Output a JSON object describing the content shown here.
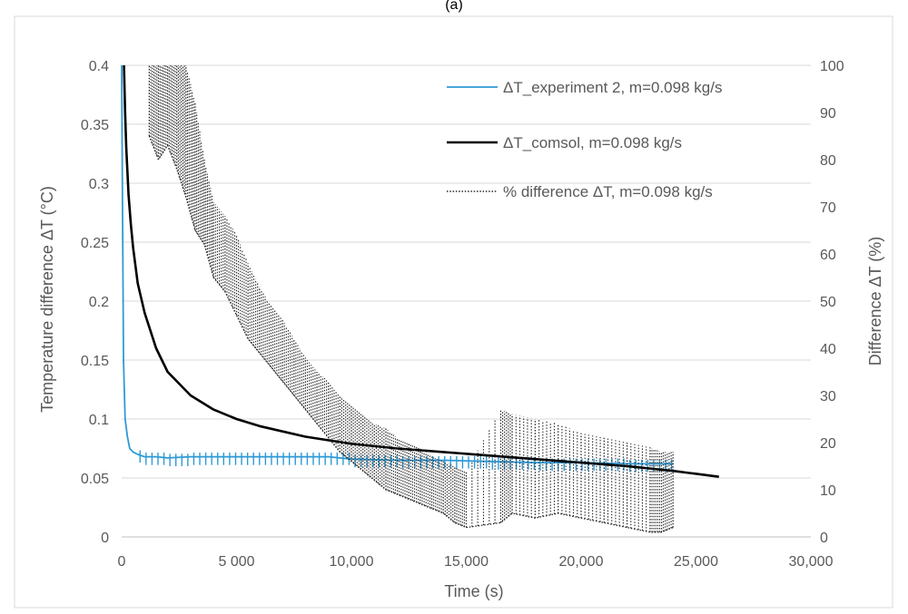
{
  "header": {
    "caption": "(a)"
  },
  "chart_data": {
    "type": "line",
    "xlabel": "Time (s)",
    "ylabel_left": "Temperature difference ΔT (°C)",
    "ylabel_right": "Difference ΔT (%)",
    "xlim": [
      0,
      30000
    ],
    "ylim_left": [
      0,
      0.4
    ],
    "ylim_right": [
      0,
      100
    ],
    "x_ticks": [
      0,
      5000,
      10000,
      15000,
      20000,
      25000,
      30000
    ],
    "x_tick_labels": [
      "0",
      "5 000",
      "10,000",
      "15,000",
      "20,000",
      "25,000",
      "30,000"
    ],
    "y_left_ticks": [
      0,
      0.05,
      0.1,
      0.15,
      0.2,
      0.25,
      0.3,
      0.35,
      0.4
    ],
    "y_left_tick_labels": [
      "0",
      "0.05",
      "0.1",
      "0.15",
      "0.2",
      "0.25",
      "0.3",
      "0.35",
      "0.4"
    ],
    "y_right_ticks": [
      0,
      10,
      20,
      30,
      40,
      50,
      60,
      70,
      80,
      90,
      100
    ],
    "y_right_tick_labels": [
      "0",
      "10",
      "20",
      "30",
      "40",
      "50",
      "60",
      "70",
      "80",
      "90",
      "100"
    ],
    "grid": "horizontal",
    "legend_position": "top-right",
    "colors": {
      "experiment": "#2E9AD6",
      "comsol": "#000000",
      "difference": "#262626",
      "grid": "#D9D9D9",
      "axis": "#BFBFBF"
    },
    "series": [
      {
        "name": "ΔT_experiment 2, m=0.098 kg/s",
        "axis": "left",
        "style": "solid",
        "color": "#2E9AD6",
        "x": [
          0,
          30,
          80,
          150,
          250,
          350,
          500,
          700,
          1000,
          1500,
          2000,
          3000,
          5000,
          7000,
          9000,
          10000,
          12000,
          14000,
          16000,
          18000,
          20000,
          22000,
          23000,
          24000
        ],
        "y": [
          0.4,
          0.3,
          0.15,
          0.1,
          0.085,
          0.075,
          0.072,
          0.07,
          0.068,
          0.068,
          0.067,
          0.068,
          0.068,
          0.068,
          0.068,
          0.066,
          0.065,
          0.065,
          0.064,
          0.063,
          0.063,
          0.062,
          0.062,
          0.062
        ]
      },
      {
        "name": "ΔT_comsol, m=0.098 kg/s",
        "axis": "left",
        "style": "solid",
        "color": "#000000",
        "x": [
          100,
          150,
          200,
          300,
          400,
          500,
          700,
          1000,
          1500,
          2000,
          3000,
          4000,
          5000,
          6000,
          8000,
          10000,
          12000,
          14000,
          16000,
          18000,
          20000,
          22000,
          24000,
          26000
        ],
        "y": [
          0.4,
          0.36,
          0.33,
          0.29,
          0.265,
          0.245,
          0.215,
          0.19,
          0.16,
          0.14,
          0.12,
          0.108,
          0.1,
          0.094,
          0.085,
          0.079,
          0.075,
          0.072,
          0.069,
          0.066,
          0.063,
          0.06,
          0.056,
          0.051
        ]
      },
      {
        "name": "% difference ΔT, m=0.098 kg/s",
        "axis": "right",
        "style": "dotted",
        "color": "#262626",
        "x": [
          1200,
          1600,
          2000,
          2400,
          2800,
          3200,
          3600,
          4000,
          4500,
          5000,
          5500,
          6000,
          6500,
          7000,
          7500,
          8000,
          8500,
          9000,
          9500,
          10000,
          10500,
          11000,
          11500,
          12000,
          12500,
          13000,
          13500,
          14000,
          14500,
          15000,
          16500,
          17000,
          18000,
          19000,
          20000,
          21000,
          22000,
          23000,
          23500,
          24000
        ],
        "y_low": [
          85,
          80,
          83,
          78,
          72,
          65,
          62,
          55,
          52,
          47,
          42,
          39,
          36,
          33,
          30,
          27,
          24,
          21,
          18,
          16,
          14,
          12,
          10,
          9,
          8,
          7,
          6,
          5,
          3,
          2,
          3,
          5,
          4,
          5,
          4,
          3,
          2,
          1,
          1,
          2
        ],
        "y_high": [
          100,
          100,
          100,
          100,
          100,
          92,
          80,
          71,
          68,
          64,
          58,
          53,
          49,
          46,
          42,
          38,
          35,
          33,
          30,
          28,
          26,
          24,
          23,
          21,
          20,
          19,
          17,
          16,
          15,
          14,
          27,
          26,
          25,
          24,
          22,
          21,
          20,
          19,
          18,
          18
        ]
      }
    ]
  }
}
